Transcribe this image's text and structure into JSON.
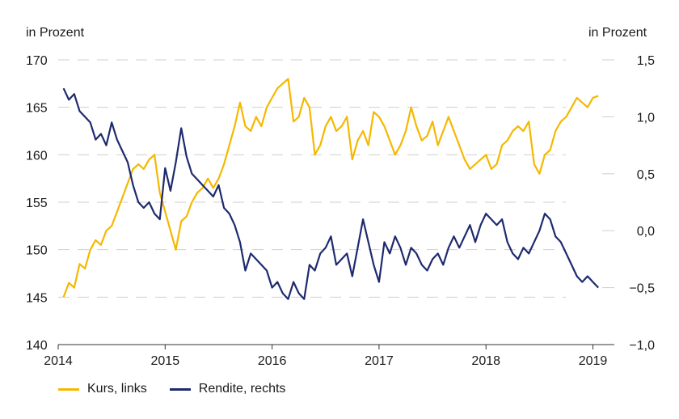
{
  "chart_data": {
    "type": "line",
    "left_axis": {
      "unit_label": "in Prozent",
      "ylim": [
        140,
        170
      ],
      "ticks": [
        "140",
        "145",
        "150",
        "155",
        "160",
        "165",
        "170"
      ]
    },
    "right_axis": {
      "unit_label": "in Prozent",
      "ylim": [
        -1.0,
        1.5
      ],
      "ticks": [
        "−1,0",
        "−0,5",
        "0,0",
        "0,5",
        "1,0",
        "1,5"
      ]
    },
    "x_ticks": [
      "2014",
      "2015",
      "2016",
      "2017",
      "2018",
      "2019"
    ],
    "xlim": [
      2014.0,
      2019.2
    ],
    "grid": "horizontal dashed",
    "legend_position": "bottom-left",
    "series": [
      {
        "name": "Kurs, links",
        "axis": "left",
        "color": "#f5b800",
        "x": [
          2014.05,
          2014.1,
          2014.15,
          2014.2,
          2014.25,
          2014.3,
          2014.35,
          2014.4,
          2014.45,
          2014.5,
          2014.55,
          2014.6,
          2014.65,
          2014.7,
          2014.75,
          2014.8,
          2014.85,
          2014.9,
          2014.95,
          2015.0,
          2015.05,
          2015.1,
          2015.15,
          2015.2,
          2015.25,
          2015.3,
          2015.35,
          2015.4,
          2015.45,
          2015.5,
          2015.55,
          2015.6,
          2015.65,
          2015.7,
          2015.75,
          2015.8,
          2015.85,
          2015.9,
          2015.95,
          2016.0,
          2016.05,
          2016.1,
          2016.15,
          2016.2,
          2016.25,
          2016.3,
          2016.35,
          2016.4,
          2016.45,
          2016.5,
          2016.55,
          2016.6,
          2016.65,
          2016.7,
          2016.75,
          2016.8,
          2016.85,
          2016.9,
          2016.95,
          2017.0,
          2017.05,
          2017.1,
          2017.15,
          2017.2,
          2017.25,
          2017.3,
          2017.35,
          2017.4,
          2017.45,
          2017.5,
          2017.55,
          2017.6,
          2017.65,
          2017.7,
          2017.75,
          2017.8,
          2017.85,
          2017.9,
          2017.95,
          2018.0,
          2018.05,
          2018.1,
          2018.15,
          2018.2,
          2018.25,
          2018.3,
          2018.35,
          2018.4,
          2018.45,
          2018.5,
          2018.55,
          2018.6,
          2018.65,
          2018.7,
          2018.75,
          2018.8,
          2018.85,
          2018.9,
          2018.95,
          2019.0,
          2019.05
        ],
        "y": [
          145.0,
          146.5,
          146.0,
          148.5,
          148.0,
          150.0,
          151.0,
          150.5,
          152.0,
          152.5,
          154.0,
          155.5,
          157.0,
          158.5,
          159.0,
          158.5,
          159.5,
          160.0,
          156.0,
          154.0,
          152.0,
          150.0,
          153.0,
          153.5,
          155.0,
          156.0,
          156.5,
          157.5,
          156.5,
          157.5,
          159.0,
          161.0,
          163.0,
          165.5,
          163.0,
          162.5,
          164.0,
          163.0,
          165.0,
          166.0,
          167.0,
          167.5,
          168.0,
          163.5,
          164.0,
          166.0,
          165.0,
          160.0,
          161.0,
          163.0,
          164.0,
          162.5,
          163.0,
          164.0,
          159.5,
          161.5,
          162.5,
          161.0,
          164.5,
          164.0,
          163.0,
          161.5,
          160.0,
          161.0,
          162.5,
          165.0,
          163.0,
          161.5,
          162.0,
          163.5,
          161.0,
          162.5,
          164.0,
          162.5,
          161.0,
          159.5,
          158.5,
          159.0,
          159.5,
          160.0,
          158.5,
          159.0,
          161.0,
          161.5,
          162.5,
          163.0,
          162.5,
          163.5,
          159.0,
          158.0,
          160.0,
          160.5,
          162.5,
          163.5,
          164.0,
          165.0,
          166.0,
          165.5,
          165.0,
          166.0,
          166.2
        ]
      },
      {
        "name": "Rendite, rechts",
        "axis": "right",
        "color": "#1e2a6e",
        "x": [
          2014.05,
          2014.1,
          2014.15,
          2014.2,
          2014.25,
          2014.3,
          2014.35,
          2014.4,
          2014.45,
          2014.5,
          2014.55,
          2014.6,
          2014.65,
          2014.7,
          2014.75,
          2014.8,
          2014.85,
          2014.9,
          2014.95,
          2015.0,
          2015.05,
          2015.1,
          2015.15,
          2015.2,
          2015.25,
          2015.3,
          2015.35,
          2015.4,
          2015.45,
          2015.5,
          2015.55,
          2015.6,
          2015.65,
          2015.7,
          2015.75,
          2015.8,
          2015.85,
          2015.9,
          2015.95,
          2016.0,
          2016.05,
          2016.1,
          2016.15,
          2016.2,
          2016.25,
          2016.3,
          2016.35,
          2016.4,
          2016.45,
          2016.5,
          2016.55,
          2016.6,
          2016.65,
          2016.7,
          2016.75,
          2016.8,
          2016.85,
          2016.9,
          2016.95,
          2017.0,
          2017.05,
          2017.1,
          2017.15,
          2017.2,
          2017.25,
          2017.3,
          2017.35,
          2017.4,
          2017.45,
          2017.5,
          2017.55,
          2017.6,
          2017.65,
          2017.7,
          2017.75,
          2017.8,
          2017.85,
          2017.9,
          2017.95,
          2018.0,
          2018.05,
          2018.1,
          2018.15,
          2018.2,
          2018.25,
          2018.3,
          2018.35,
          2018.4,
          2018.45,
          2018.5,
          2018.55,
          2018.6,
          2018.65,
          2018.7,
          2018.75,
          2018.8,
          2018.85,
          2018.9,
          2018.95,
          2019.0,
          2019.05
        ],
        "y": [
          1.25,
          1.15,
          1.2,
          1.05,
          1.0,
          0.95,
          0.8,
          0.85,
          0.75,
          0.95,
          0.8,
          0.7,
          0.6,
          0.4,
          0.25,
          0.2,
          0.25,
          0.15,
          0.1,
          0.55,
          0.35,
          0.6,
          0.9,
          0.65,
          0.5,
          0.45,
          0.4,
          0.35,
          0.3,
          0.4,
          0.2,
          0.15,
          0.05,
          -0.1,
          -0.35,
          -0.2,
          -0.25,
          -0.3,
          -0.35,
          -0.5,
          -0.45,
          -0.55,
          -0.6,
          -0.45,
          -0.55,
          -0.6,
          -0.3,
          -0.35,
          -0.2,
          -0.15,
          -0.05,
          -0.3,
          -0.25,
          -0.2,
          -0.4,
          -0.15,
          0.1,
          -0.1,
          -0.3,
          -0.45,
          -0.1,
          -0.2,
          -0.05,
          -0.15,
          -0.3,
          -0.15,
          -0.2,
          -0.3,
          -0.35,
          -0.25,
          -0.2,
          -0.3,
          -0.15,
          -0.05,
          -0.15,
          -0.05,
          0.05,
          -0.1,
          0.05,
          0.15,
          0.1,
          0.05,
          0.1,
          -0.1,
          -0.2,
          -0.25,
          -0.15,
          -0.2,
          -0.1,
          0.0,
          0.15,
          0.1,
          -0.05,
          -0.1,
          -0.2,
          -0.3,
          -0.4,
          -0.45,
          -0.4,
          -0.45,
          -0.5
        ]
      }
    ]
  }
}
